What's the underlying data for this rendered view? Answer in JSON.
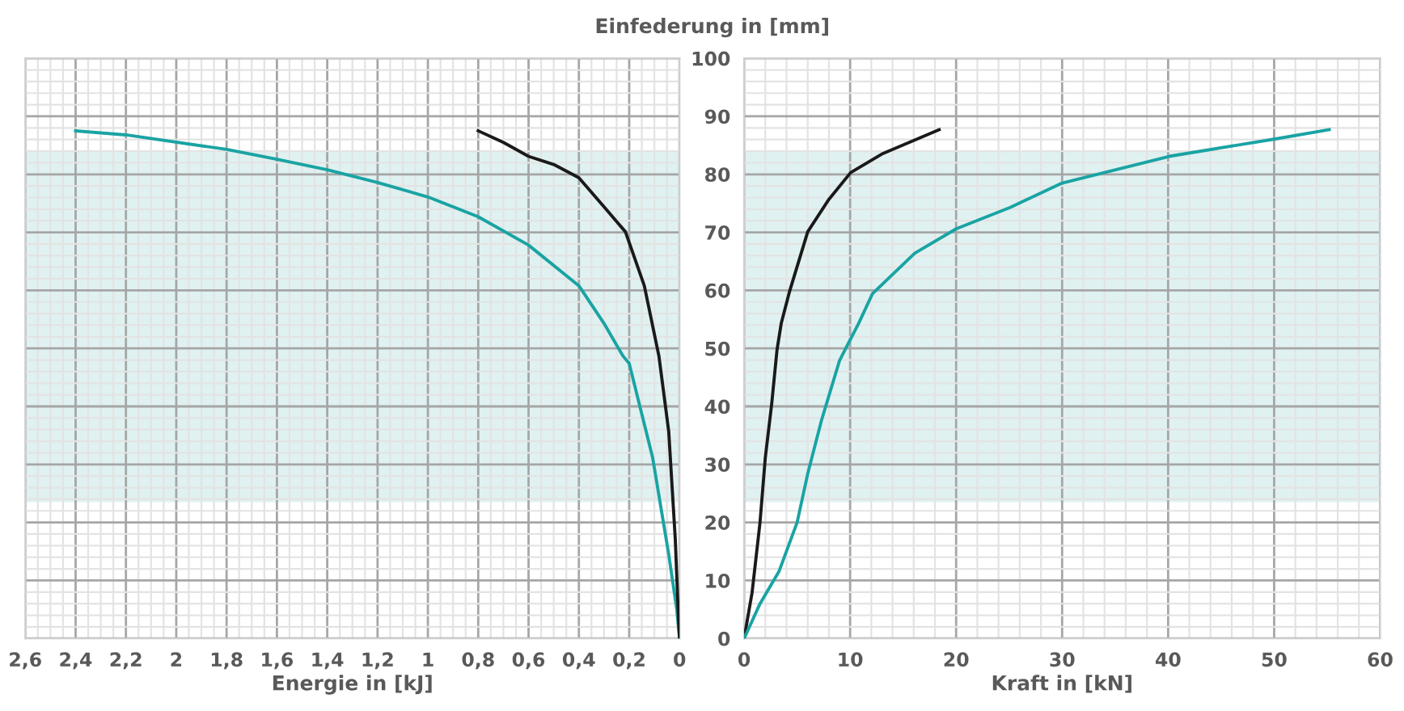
{
  "chart_data": [
    {
      "type": "line",
      "xlabel": "Energie in [kJ]",
      "xlim": [
        2.6,
        0
      ],
      "ylim": [
        0,
        100
      ],
      "xticks": [
        {
          "value": 2.6,
          "label": "2,6"
        },
        {
          "value": 2.4,
          "label": "2,4"
        },
        {
          "value": 2.2,
          "label": "2,2"
        },
        2,
        {
          "value": 1.8,
          "label": "1,8"
        },
        {
          "value": 1.6,
          "label": "1,6"
        },
        {
          "value": 1.4,
          "label": "1,4"
        },
        {
          "value": 1.2,
          "label": "1,2"
        },
        1,
        {
          "value": 0.8,
          "label": "0,8"
        },
        {
          "value": 0.6,
          "label": "0,6"
        },
        {
          "value": 0.4,
          "label": "0,4"
        },
        {
          "value": 0.2,
          "label": "0,2"
        },
        0
      ],
      "yticks": [
        0,
        10,
        20,
        30,
        40,
        50,
        60,
        70,
        80,
        90,
        100
      ],
      "tick_labels": "x",
      "grid": true,
      "bands": [
        {
          "axis": "y",
          "from": 23.5,
          "to": 84,
          "color": "#e0f1f1"
        }
      ],
      "series": [
        {
          "color": "#1aa3a3",
          "x": [
            2.4,
            2.2,
            1.8,
            1.6,
            1.4,
            1.2,
            1.0,
            0.8,
            0.6,
            0.4,
            0.3,
            0.225,
            0.2,
            0.107,
            0.043,
            0.011,
            0
          ],
          "values": [
            87.5,
            86.8,
            84.3,
            82.6,
            80.8,
            78.6,
            76.1,
            72.7,
            67.8,
            60.8,
            54.3,
            48.7,
            47.4,
            31.2,
            14.5,
            5,
            0
          ]
        },
        {
          "color": "#1a1a1a",
          "x": [
            0.8,
            0.7,
            0.6,
            0.5,
            0.4,
            0.3,
            0.215,
            0.14,
            0.082,
            0.043,
            0.017,
            0.004,
            0
          ],
          "values": [
            87.5,
            85.5,
            83.1,
            81.7,
            79.4,
            74.4,
            70.1,
            60.8,
            48.7,
            35.7,
            17.2,
            3.3,
            0
          ]
        }
      ]
    },
    {
      "type": "line",
      "xlabel": "Kraft in [kN]",
      "ylabel": "Einfederung in [mm]",
      "xlim": [
        0,
        60
      ],
      "ylim": [
        0,
        100
      ],
      "xticks": [
        0,
        10,
        20,
        30,
        40,
        50,
        60
      ],
      "yticks": [
        0,
        10,
        20,
        30,
        40,
        50,
        60,
        70,
        80,
        90,
        100
      ],
      "grid": true,
      "bands": [
        {
          "axis": "y",
          "from": 23.5,
          "to": 84,
          "color": "#e0f1f1"
        }
      ],
      "series": [
        {
          "color": "#1a1a1a",
          "x": [
            0,
            0.75,
            1.5,
            2.0,
            2.6,
            3.1,
            3.5,
            4.3,
            6.0,
            8.0,
            10.05,
            13.1,
            18.4
          ],
          "values": [
            0,
            7.9,
            20,
            31.2,
            40.4,
            49.7,
            54.3,
            59.9,
            70.1,
            75.7,
            80.3,
            83.6,
            87.7
          ]
        },
        {
          "color": "#1aa3a3",
          "x": [
            0,
            1.5,
            3.3,
            5,
            6,
            7.3,
            9.0,
            9.5,
            10.8,
            12.1,
            16.1,
            20,
            25.1,
            30,
            40.1,
            50.1,
            55.2
          ],
          "values": [
            0,
            6,
            11.6,
            20,
            28.4,
            37.6,
            47.9,
            49.7,
            54.3,
            59.4,
            66.4,
            70.6,
            74.3,
            78.5,
            83.1,
            86.1,
            87.7
          ]
        }
      ]
    }
  ]
}
